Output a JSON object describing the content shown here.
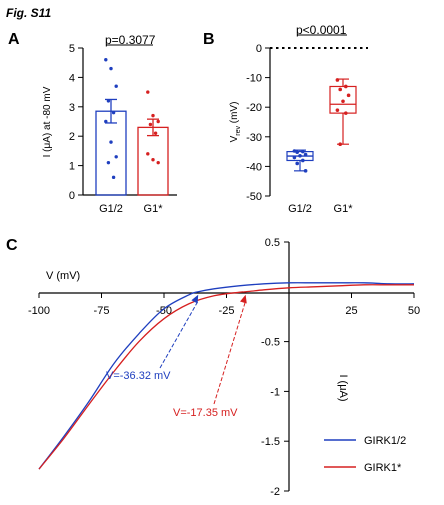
{
  "figure": {
    "label": "Fig. S11"
  },
  "chart_data": [
    {
      "panel": "A",
      "type": "bar",
      "categories": [
        "G1/2",
        "G1*"
      ],
      "ylabel": "I (μA) at -80 mV",
      "ylim": [
        0,
        5
      ],
      "yticks": [
        "0",
        "1",
        "2",
        "3",
        "4",
        "5"
      ],
      "pvalue": "p=0.3077",
      "colors": [
        "#1f3fbf",
        "#d62020"
      ],
      "means": [
        2.85,
        2.3
      ],
      "sem": [
        0.4,
        0.28
      ],
      "points": [
        [
          4.6,
          4.3,
          3.7,
          3.2,
          2.8,
          2.5,
          1.8,
          1.3,
          1.1,
          0.6
        ],
        [
          3.5,
          2.7,
          2.5,
          2.4,
          2.1,
          1.4,
          1.2,
          1.1
        ]
      ]
    },
    {
      "panel": "B",
      "type": "box",
      "categories": [
        "G1/2",
        "G1*"
      ],
      "ylabel_main": "V",
      "ylabel_sub": "rev",
      "ylabel_unit": " (mV)",
      "ylim": [
        -50,
        0
      ],
      "yticks": [
        "0",
        "-10",
        "-20",
        "-30",
        "-40",
        "-50"
      ],
      "pvalue": "p<0.0001",
      "colors": [
        "#1f3fbf",
        "#d62020"
      ],
      "boxes": [
        {
          "min": -41.5,
          "q1": -38,
          "median": -36.5,
          "q3": -35,
          "max": -34.5
        },
        {
          "min": -32.5,
          "q1": -22,
          "median": -19,
          "q3": -13,
          "max": -10.5
        }
      ],
      "points": [
        [
          -34.8,
          -35,
          -35.2,
          -36,
          -36.4,
          -37,
          -38,
          -39,
          -41.5
        ],
        [
          -10.8,
          -13,
          -14,
          -16,
          -18,
          -21,
          -22,
          -32.5
        ]
      ]
    },
    {
      "panel": "C",
      "type": "line",
      "xlabel": "V (mV)",
      "ylabel": "I (μA)",
      "xlim": [
        -100,
        50
      ],
      "ylim": [
        -2,
        0.5
      ],
      "xticks": [
        "-100",
        "-75",
        "-50",
        "-25",
        "25",
        "50"
      ],
      "yticks": [
        "0.5",
        "-0.5",
        "-1",
        "-1.5",
        "-2"
      ],
      "series": [
        {
          "name": "GIRK1/2",
          "color": "#1f3fbf",
          "x": [
            -100,
            -90,
            -80,
            -70,
            -60,
            -50,
            -40,
            -36.32,
            -30,
            -20,
            -10,
            0,
            10,
            20,
            30,
            40,
            50
          ],
          "y": [
            -1.78,
            -1.45,
            -1.1,
            -0.72,
            -0.42,
            -0.17,
            -0.03,
            0,
            0.03,
            0.06,
            0.08,
            0.09,
            0.09,
            0.09,
            0.09,
            0.08,
            0.08
          ]
        },
        {
          "name": "GIRK1*",
          "color": "#d62020",
          "x": [
            -100,
            -90,
            -80,
            -70,
            -60,
            -50,
            -40,
            -30,
            -20,
            -17.35,
            -10,
            0,
            10,
            20,
            30,
            40,
            50
          ],
          "y": [
            -1.78,
            -1.47,
            -1.13,
            -0.8,
            -0.5,
            -0.27,
            -0.12,
            -0.04,
            -0.005,
            0,
            0.02,
            0.04,
            0.05,
            0.06,
            0.07,
            0.07,
            0.07
          ]
        }
      ],
      "annotations": [
        {
          "text": "V=-36.32 mV",
          "at": -36.32,
          "color": "#1f3fbf"
        },
        {
          "text": "V=-17.35 mV",
          "at": -17.35,
          "color": "#d62020"
        }
      ]
    }
  ]
}
